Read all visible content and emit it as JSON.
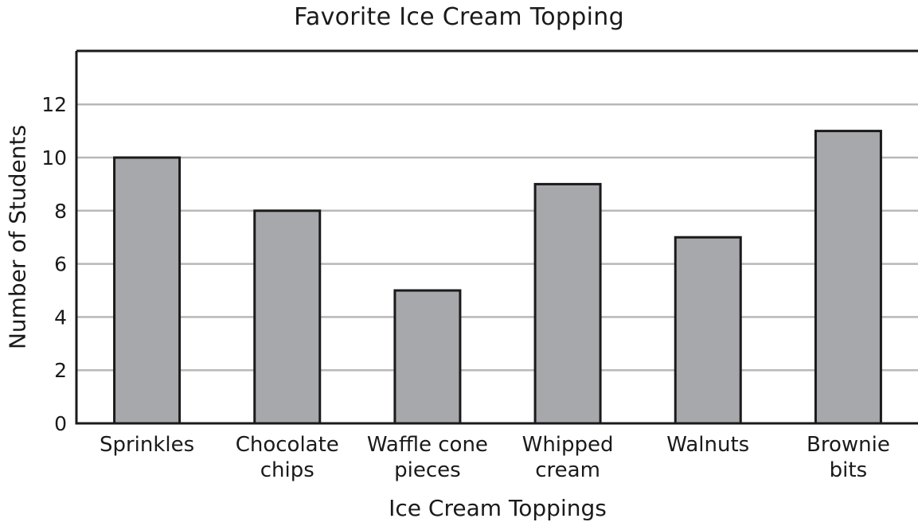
{
  "chart_data": {
    "type": "bar",
    "title": "Favorite Ice Cream Topping",
    "xlabel": "Ice Cream Toppings",
    "ylabel": "Number of Students",
    "categories": [
      [
        "Sprinkles"
      ],
      [
        "Chocolate",
        "chips"
      ],
      [
        "Waffle cone",
        "pieces"
      ],
      [
        "Whipped",
        "cream"
      ],
      [
        "Walnuts"
      ],
      [
        "Brownie",
        "bits"
      ]
    ],
    "values": [
      10,
      8,
      5,
      9,
      7,
      11
    ],
    "ylim": [
      0,
      14
    ],
    "yticks": [
      0,
      2,
      4,
      6,
      8,
      10,
      12
    ],
    "grid": true,
    "colors": {
      "bar_fill": "#a7a8ab",
      "bar_stroke": "#1a1a1a",
      "grid": "#b8b8b8",
      "axis": "#1a1a1a"
    }
  }
}
